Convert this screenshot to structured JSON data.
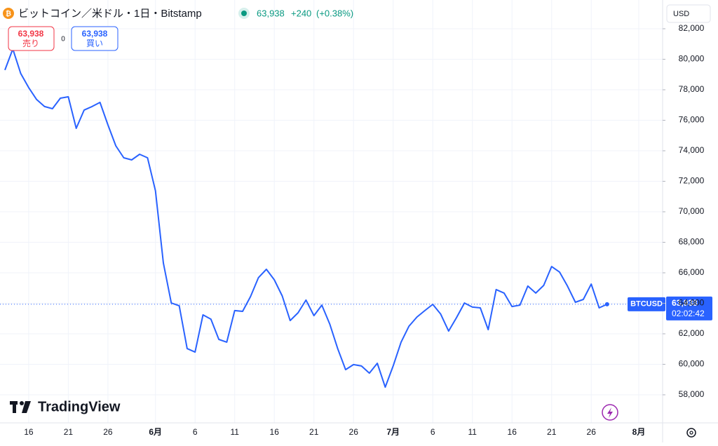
{
  "header": {
    "title": "ビットコイン／米ドル・1日・Bitstamp",
    "price": "63,938",
    "change": "+240",
    "change_pct": "(+0.38%)"
  },
  "trade": {
    "sell_price": "63,938",
    "sell_label": "売り",
    "spread": "0",
    "buy_price": "63,938",
    "buy_label": "買い"
  },
  "currency": "USD",
  "price_tag": {
    "symbol": "BTCUSD",
    "price": "63,938",
    "countdown": "02:02:42"
  },
  "brand": "TradingView",
  "chart_data": {
    "type": "line",
    "color": "#2962ff",
    "grid": true,
    "categories": [
      null,
      null,
      null,
      "16",
      null,
      null,
      null,
      null,
      "21",
      null,
      null,
      null,
      null,
      "26",
      null,
      null,
      null,
      null,
      null,
      "6月",
      null,
      null,
      null,
      null,
      "6",
      null,
      null,
      null,
      null,
      "11",
      null,
      null,
      null,
      null,
      "16",
      null,
      null,
      null,
      null,
      "21",
      null,
      null,
      null,
      null,
      "26",
      null,
      null,
      null,
      null,
      "7月",
      null,
      null,
      null,
      null,
      "6",
      null,
      null,
      null,
      null,
      "11",
      null,
      null,
      null,
      null,
      "16",
      null,
      null,
      null,
      null,
      "21",
      null,
      null,
      null,
      null,
      "26",
      null,
      null,
      null,
      null,
      null,
      "8月",
      null,
      null
    ],
    "values": [
      79290,
      80670,
      79060,
      78140,
      77360,
      76900,
      76760,
      77450,
      77540,
      75470,
      76670,
      76900,
      77170,
      75700,
      74320,
      73540,
      73400,
      73770,
      73540,
      71380,
      66640,
      64020,
      63840,
      61030,
      60800,
      63240,
      62960,
      61630,
      61450,
      63520,
      63470,
      64440,
      65680,
      66230,
      65540,
      64480,
      62870,
      63380,
      64210,
      63190,
      63880,
      62640,
      61030,
      59650,
      59980,
      59890,
      59420,
      60070,
      58500,
      59890,
      61450,
      62500,
      63100,
      63520,
      63930,
      63290,
      62180,
      63060,
      64020,
      63750,
      63700,
      62270,
      64900,
      64670,
      63790,
      63880,
      65130,
      64670,
      65170,
      66410,
      66050,
      65130,
      64070,
      64250,
      65260,
      63700,
      63938,
      null,
      null,
      null,
      null,
      null,
      null
    ],
    "ylim": [
      56160,
      83885
    ],
    "yticks": [
      {
        "value": 58000,
        "label": "58,000"
      },
      {
        "value": 60000,
        "label": "60,000"
      },
      {
        "value": 62000,
        "label": "62,000"
      },
      {
        "value": 64000,
        "label": "64,000"
      },
      {
        "value": 66000,
        "label": "66,000"
      },
      {
        "value": 68000,
        "label": "68,000"
      },
      {
        "value": 70000,
        "label": "70,000"
      },
      {
        "value": 72000,
        "label": "72,000"
      },
      {
        "value": 74000,
        "label": "74,000"
      },
      {
        "value": 76000,
        "label": "76,000"
      },
      {
        "value": 78000,
        "label": "78,000"
      },
      {
        "value": 80000,
        "label": "80,000"
      },
      {
        "value": 82000,
        "label": "82,000"
      }
    ]
  }
}
